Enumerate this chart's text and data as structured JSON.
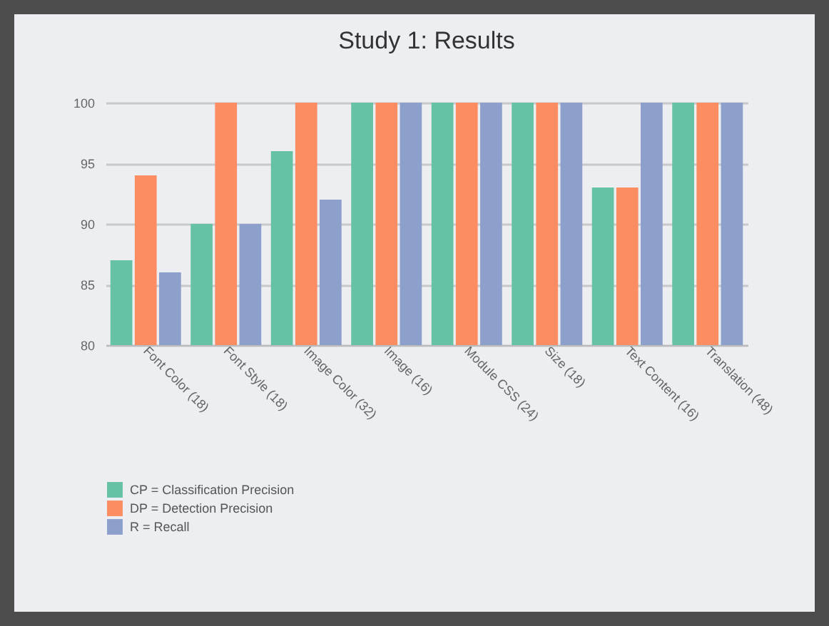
{
  "chart_data": {
    "type": "bar",
    "title": "Study 1: Results",
    "categories": [
      "Font Color (18)",
      "Font Style (18)",
      "Image Color (32)",
      "Image (16)",
      "Module CSS (24)",
      "Size (18)",
      "Text Content (16)",
      "Translation (48)"
    ],
    "series": [
      {
        "name": "CP = Classification Precision",
        "color": "#66c2a5",
        "values": [
          87,
          90,
          96,
          100,
          100,
          100,
          93,
          100
        ]
      },
      {
        "name": "DP = Detection Precision",
        "color": "#fc8d62",
        "values": [
          94,
          100,
          100,
          100,
          100,
          100,
          93,
          100
        ]
      },
      {
        "name": "R = Recall",
        "color": "#8da0cb",
        "values": [
          86,
          90,
          92,
          100,
          100,
          100,
          100,
          100
        ]
      }
    ],
    "ylim": [
      80,
      100
    ],
    "yticks": [
      80,
      85,
      90,
      95,
      100
    ],
    "grid": "y",
    "legend": "bottom"
  }
}
